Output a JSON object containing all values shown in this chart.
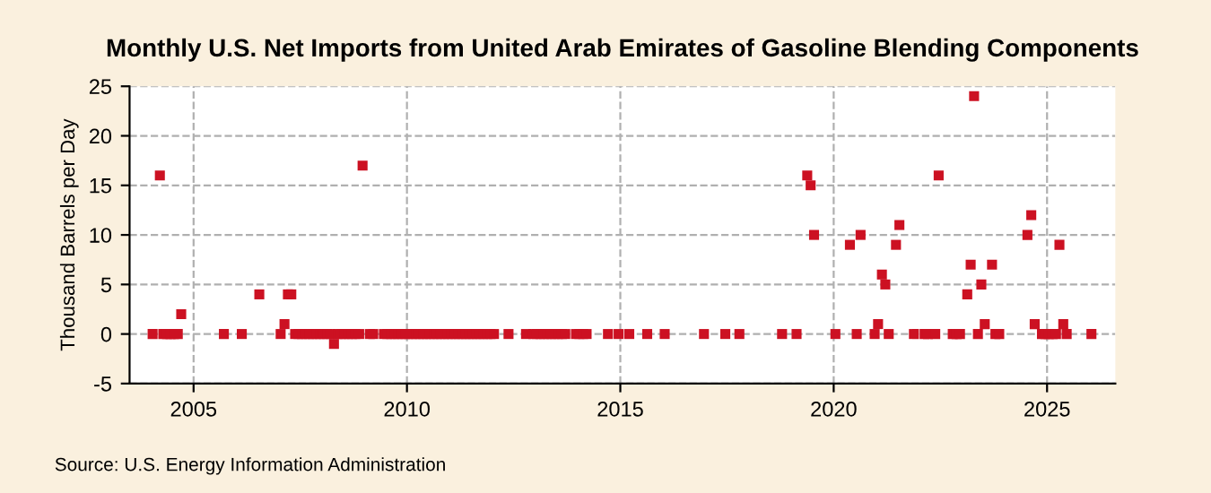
{
  "chart_data": {
    "type": "scatter",
    "title": "Monthly U.S. Net Imports from United Arab Emirates of Gasoline Blending Components",
    "ylabel": "Thousand Barrels per Day",
    "annotations": [
      "Source: U.S. Energy Information Administration"
    ],
    "x": [
      2004.04,
      2004.21,
      2004.29,
      2004.38,
      2004.46,
      2004.54,
      2004.63,
      2004.71,
      2005.71,
      2006.13,
      2006.54,
      2007.04,
      2007.13,
      2007.21,
      2007.29,
      2007.38,
      2007.46,
      2007.54,
      2007.63,
      2007.71,
      2007.79,
      2007.88,
      2007.96,
      2008.04,
      2008.13,
      2008.21,
      2008.29,
      2008.38,
      2008.46,
      2008.54,
      2008.63,
      2008.71,
      2008.79,
      2008.88,
      2008.96,
      2009.13,
      2009.21,
      2009.46,
      2009.54,
      2009.63,
      2009.71,
      2009.79,
      2009.88,
      2009.96,
      2010.04,
      2010.13,
      2010.21,
      2010.29,
      2010.38,
      2010.46,
      2010.54,
      2010.63,
      2010.71,
      2010.79,
      2010.88,
      2010.96,
      2011.04,
      2011.13,
      2011.21,
      2011.29,
      2011.38,
      2011.46,
      2011.54,
      2011.63,
      2011.71,
      2011.79,
      2011.88,
      2011.96,
      2012.04,
      2012.38,
      2012.79,
      2012.96,
      2013.04,
      2013.13,
      2013.21,
      2013.29,
      2013.38,
      2013.46,
      2013.54,
      2013.63,
      2013.71,
      2013.96,
      2014.04,
      2014.13,
      2014.21,
      2014.71,
      2014.96,
      2015.21,
      2015.63,
      2016.04,
      2016.96,
      2017.46,
      2017.79,
      2018.79,
      2019.13,
      2019.38,
      2019.46,
      2019.54,
      2020.04,
      2020.38,
      2020.54,
      2020.63,
      2020.96,
      2021.04,
      2021.13,
      2021.21,
      2021.29,
      2021.46,
      2021.54,
      2021.88,
      2022.13,
      2022.21,
      2022.38,
      2022.46,
      2022.79,
      2022.88,
      2022.96,
      2023.13,
      2023.21,
      2023.29,
      2023.38,
      2023.46,
      2023.54,
      2023.71,
      2023.79,
      2023.88,
      2024.54,
      2024.63,
      2024.71,
      2024.88,
      2024.96,
      2025.04,
      2025.13,
      2025.21,
      2025.29,
      2025.38,
      2025.46,
      2026.04
    ],
    "series": [
      {
        "color": "#cc1122",
        "values": [
          0,
          16,
          0,
          0,
          0,
          0,
          0,
          2,
          0,
          0,
          4,
          0,
          1,
          4,
          4,
          0,
          0,
          0,
          0,
          0,
          0,
          0,
          0,
          0,
          0,
          0,
          -1,
          0,
          0,
          0,
          0,
          0,
          0,
          0,
          17,
          0,
          0,
          0,
          0,
          0,
          0,
          0,
          0,
          0,
          0,
          0,
          0,
          0,
          0,
          0,
          0,
          0,
          0,
          0,
          0,
          0,
          0,
          0,
          0,
          0,
          0,
          0,
          0,
          0,
          0,
          0,
          0,
          0,
          0,
          0,
          0,
          0,
          0,
          0,
          0,
          0,
          0,
          0,
          0,
          0,
          0,
          0,
          0,
          0,
          0,
          0,
          0,
          0,
          0,
          0,
          0,
          0,
          0,
          0,
          0,
          16,
          15,
          10,
          0,
          9,
          0,
          10,
          0,
          1,
          6,
          5,
          0,
          9,
          11,
          0,
          0,
          0,
          0,
          16,
          0,
          0,
          0,
          4,
          7,
          24,
          0,
          5,
          1,
          7,
          0,
          0,
          10,
          12,
          1,
          0,
          0,
          0,
          0,
          0,
          9,
          1,
          0,
          0
        ]
      }
    ],
    "xlim": [
      2003.5,
      2026.6
    ],
    "xticks": [
      2005,
      2010,
      2015,
      2020,
      2025
    ],
    "ylim": [
      -5,
      25
    ],
    "yticks": [
      -5,
      0,
      5,
      10,
      15,
      20,
      25
    ],
    "grid": true,
    "marker": "square",
    "legend": false
  }
}
